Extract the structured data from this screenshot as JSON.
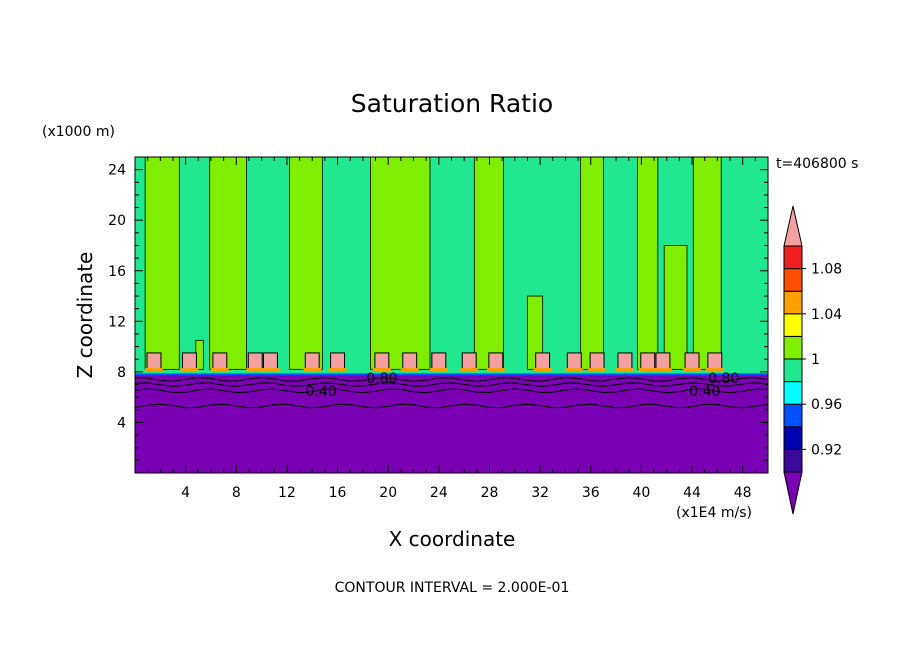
{
  "chart_data": {
    "type": "contour",
    "title": "Saturation Ratio",
    "time_label": "t=406800 s",
    "xlabel": "X coordinate",
    "ylabel": "Z coordinate",
    "x_unit": "(x1E4 m/s)",
    "y_unit": "(x1000 m)",
    "xlim": [
      0,
      50
    ],
    "ylim": [
      0,
      25
    ],
    "x_ticks": [
      "4",
      "8",
      "12",
      "16",
      "20",
      "24",
      "28",
      "32",
      "36",
      "40",
      "44",
      "48"
    ],
    "y_ticks": [
      "4",
      "8",
      "12",
      "16",
      "20",
      "24"
    ],
    "contour_interval_text": "CONTOUR INTERVAL = 2.000E-01",
    "contour_labels": [
      {
        "text": "0.40",
        "x": 14.7,
        "z": 6.5
      },
      {
        "text": "0.40",
        "x": 45.0,
        "z": 6.5
      },
      {
        "text": "0.80",
        "x": 19.5,
        "z": 7.5
      },
      {
        "text": "0.80",
        "x": 46.5,
        "z": 7.5
      }
    ],
    "colorbar": {
      "levels": [
        0.92,
        0.96,
        1,
        1.04,
        1.08
      ],
      "labels": [
        "0.92",
        "0.96",
        "1",
        "1.04",
        "1.08"
      ],
      "colors": [
        "#3a0a9a",
        "#0000b0",
        "#0050ff",
        "#00ffff",
        "#20e890",
        "#80ee00",
        "#ffff00",
        "#ffa000",
        "#ff5000",
        "#f02020"
      ],
      "under_color": "#7a00b4",
      "over_color": "#f5a0a0"
    },
    "regions": {
      "subsaturated_top_z": 7.8,
      "cloud_base_z": 8.2,
      "cloud_top_z": 9.5,
      "cloud_cells_x": [
        1.5,
        4.3,
        6.7,
        9.5,
        10.7,
        14.0,
        16.0,
        19.5,
        21.7,
        24.0,
        26.4,
        28.5,
        32.2,
        34.7,
        36.5,
        38.7,
        40.5,
        41.7,
        44.0,
        45.8
      ],
      "plume_bands": [
        {
          "x0": 0.8,
          "x1": 3.5,
          "z_top": 25
        },
        {
          "x0": 4.8,
          "x1": 5.4,
          "z_top": 10.5
        },
        {
          "x0": 5.9,
          "x1": 8.8,
          "z_top": 25
        },
        {
          "x0": 12.2,
          "x1": 14.8,
          "z_top": 25
        },
        {
          "x0": 18.6,
          "x1": 23.3,
          "z_top": 25
        },
        {
          "x0": 26.8,
          "x1": 29.1,
          "z_top": 25
        },
        {
          "x0": 31.0,
          "x1": 32.2,
          "z_top": 14
        },
        {
          "x0": 35.2,
          "x1": 37.0,
          "z_top": 25
        },
        {
          "x0": 39.7,
          "x1": 41.3,
          "z_top": 25
        },
        {
          "x0": 41.8,
          "x1": 43.6,
          "z_top": 18
        },
        {
          "x0": 44.1,
          "x1": 46.3,
          "z_top": 25
        }
      ],
      "background_color": "#20e890",
      "plume_color": "#80ee00"
    }
  }
}
